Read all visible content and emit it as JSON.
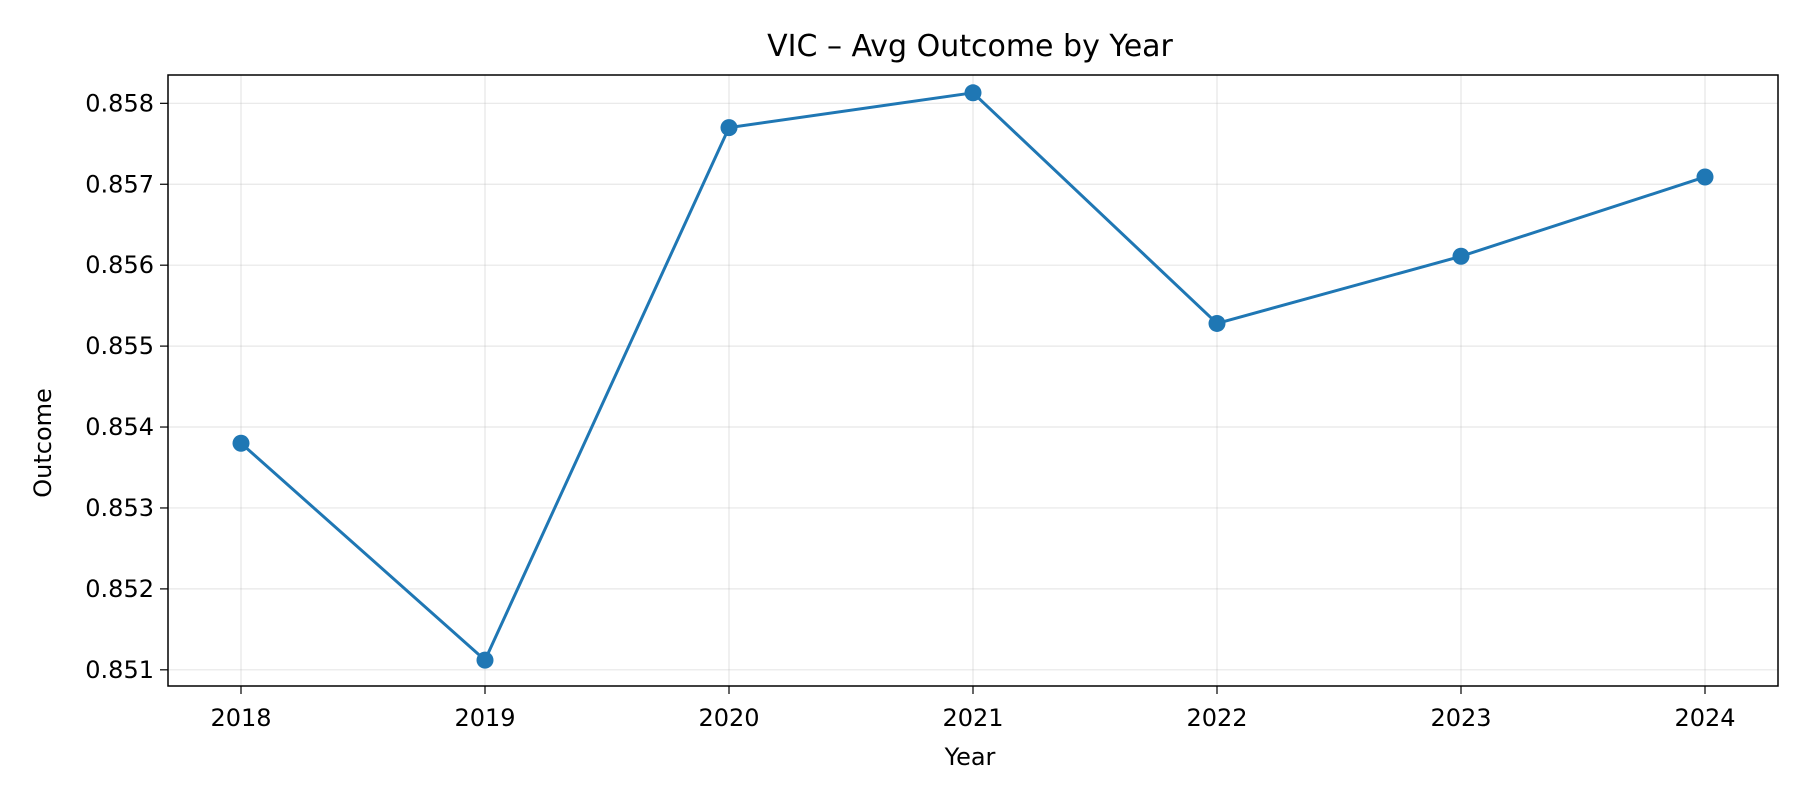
{
  "chart_data": {
    "type": "line",
    "title": "VIC – Avg Outcome by Year",
    "xlabel": "Year",
    "ylabel": "Outcome",
    "x": [
      "2018",
      "2019",
      "2020",
      "2021",
      "2022",
      "2023",
      "2024"
    ],
    "series": [
      {
        "values": [
          0.8538,
          0.85112,
          0.8577,
          0.85813,
          0.85528,
          0.85611,
          0.85709
        ],
        "color": "#1f77b4",
        "marker": "circle"
      }
    ],
    "yticks": [
      "0.851",
      "0.852",
      "0.853",
      "0.854",
      "0.855",
      "0.856",
      "0.857",
      "0.858"
    ],
    "ylim": [
      0.8508,
      0.85835
    ],
    "grid": true,
    "legend": "none"
  }
}
